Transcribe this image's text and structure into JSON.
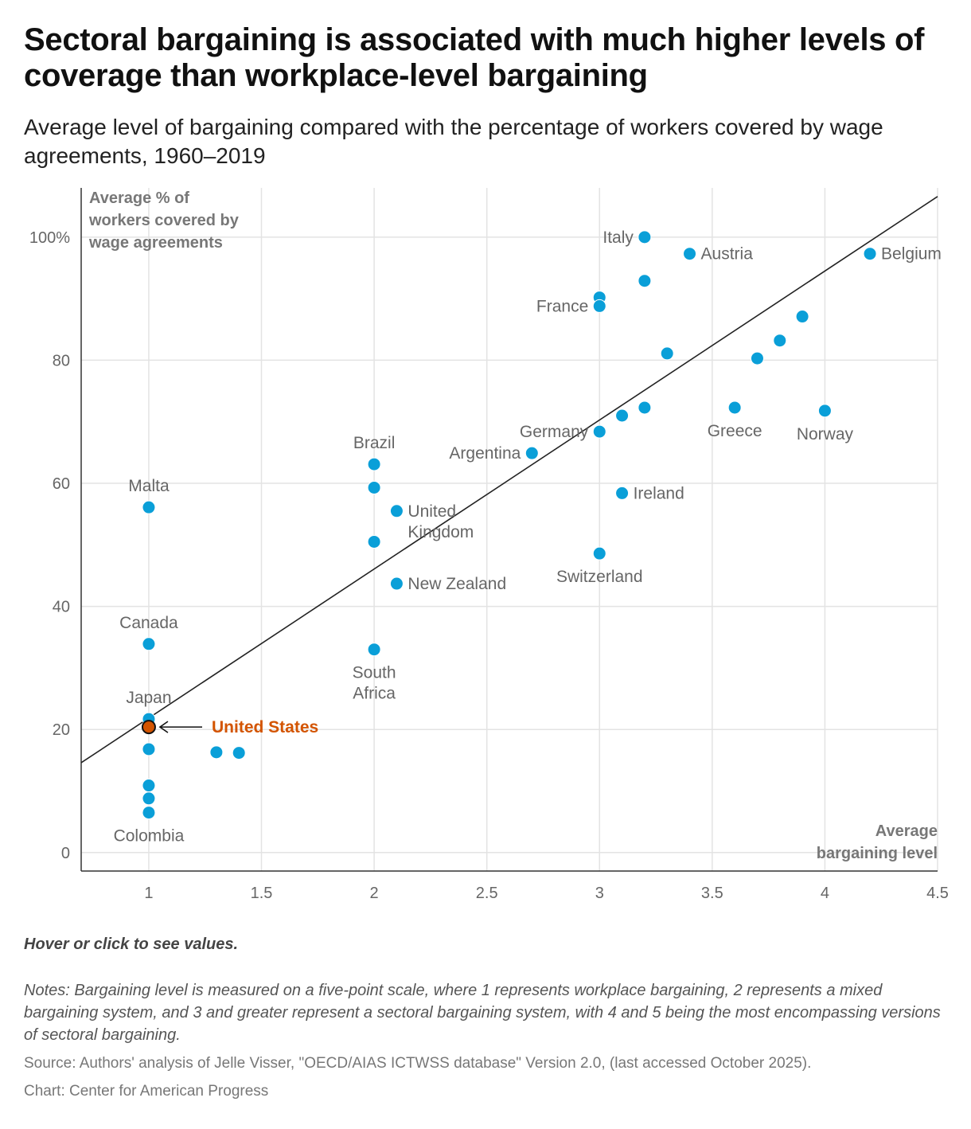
{
  "title": "Sectoral bargaining is associated with much higher levels of coverage than workplace-level bargaining",
  "subtitle": "Average level of bargaining compared with the percentage of workers covered by wage agreements, 1960–2019",
  "hover_note": "Hover or click to see values.",
  "notes": "Notes: Bargaining level is measured on a five-point scale, where 1 represents workplace bargaining, 2 represents a mixed bargaining system, and 3 and greater represent a sectoral bargaining system, with 4 and 5 being the most encompassing versions of sectoral bargaining.",
  "source": "Source: Authors' analysis of Jelle Visser, \"OECD/AIAS ICTWSS database\" Version 2.0, (last accessed October 2025).",
  "credit": "Chart: Center for American Progress",
  "chart_data": {
    "type": "scatter",
    "title": "Sectoral bargaining is associated with much higher levels of coverage than workplace-level bargaining",
    "subtitle": "Average level of bargaining compared with the percentage of workers covered by wage agreements, 1960–2019",
    "xlabel": "Average bargaining level",
    "xlabel_lines": [
      "Average",
      "bargaining level"
    ],
    "ylabel": "Average % of workers covered by wage agreements",
    "ylabel_lines": [
      "Average % of",
      "workers covered by",
      "wage agreements"
    ],
    "xlim": [
      0.7,
      4.5
    ],
    "ylim": [
      -3,
      108
    ],
    "x_ticks": [
      1,
      1.5,
      2,
      2.5,
      3,
      3.5,
      4,
      4.5
    ],
    "x_tick_labels": [
      "1",
      "1.5",
      "2",
      "2.5",
      "3",
      "3.5",
      "4",
      "4.5"
    ],
    "y_ticks": [
      0,
      20,
      40,
      60,
      80,
      100
    ],
    "y_tick_labels": [
      "0",
      "20",
      "40",
      "60",
      "80",
      "100%"
    ],
    "grid": true,
    "point_color": "#0a9fd8",
    "highlight_color": "#d35400",
    "trendline": {
      "x": [
        0.7,
        4.5
      ],
      "y": [
        14.6,
        106.6
      ],
      "color": "#222222"
    },
    "points": [
      {
        "label": "Italy",
        "x": 3.2,
        "y": 100,
        "label_pos": "left"
      },
      {
        "label": "Austria",
        "x": 3.4,
        "y": 97.3,
        "label_pos": "right"
      },
      {
        "label": "Belgium",
        "x": 4.2,
        "y": 97.3,
        "label_pos": "right"
      },
      {
        "label": "",
        "x": 3.2,
        "y": 92.9,
        "label_pos": "none"
      },
      {
        "label": "",
        "x": 3.0,
        "y": 90.2,
        "label_pos": "none"
      },
      {
        "label": "France",
        "x": 3.0,
        "y": 88.8,
        "label_pos": "left"
      },
      {
        "label": "",
        "x": 3.9,
        "y": 87.1,
        "label_pos": "none"
      },
      {
        "label": "",
        "x": 3.8,
        "y": 83.2,
        "label_pos": "none"
      },
      {
        "label": "",
        "x": 3.3,
        "y": 81.1,
        "label_pos": "none"
      },
      {
        "label": "",
        "x": 3.7,
        "y": 80.3,
        "label_pos": "none"
      },
      {
        "label": "Greece",
        "x": 3.6,
        "y": 72.3,
        "label_pos": "below"
      },
      {
        "label": "",
        "x": 3.2,
        "y": 72.3,
        "label_pos": "none"
      },
      {
        "label": "Norway",
        "x": 4.0,
        "y": 71.8,
        "label_pos": "below"
      },
      {
        "label": "",
        "x": 3.1,
        "y": 71.0,
        "label_pos": "none"
      },
      {
        "label": "Germany",
        "x": 3.0,
        "y": 68.4,
        "label_pos": "left"
      },
      {
        "label": "Argentina",
        "x": 2.7,
        "y": 64.9,
        "label_pos": "left"
      },
      {
        "label": "Brazil",
        "x": 2.0,
        "y": 63.1,
        "label_pos": "above"
      },
      {
        "label": "",
        "x": 2.0,
        "y": 59.3,
        "label_pos": "none"
      },
      {
        "label": "Ireland",
        "x": 3.1,
        "y": 58.4,
        "label_pos": "right"
      },
      {
        "label": "Malta",
        "x": 1.0,
        "y": 56.1,
        "label_pos": "above"
      },
      {
        "label": "United Kingdom",
        "lines": [
          "United",
          "Kingdom"
        ],
        "x": 2.1,
        "y": 55.5,
        "label_pos": "right"
      },
      {
        "label": "",
        "x": 2.0,
        "y": 50.5,
        "label_pos": "none"
      },
      {
        "label": "Switzerland",
        "x": 3.0,
        "y": 48.6,
        "label_pos": "below"
      },
      {
        "label": "New Zealand",
        "x": 2.1,
        "y": 43.7,
        "label_pos": "right"
      },
      {
        "label": "Canada",
        "x": 1.0,
        "y": 33.9,
        "label_pos": "above"
      },
      {
        "label": "South Africa",
        "lines": [
          "South",
          "Africa"
        ],
        "x": 2.0,
        "y": 33.0,
        "label_pos": "below"
      },
      {
        "label": "Japan",
        "x": 1.0,
        "y": 21.7,
        "label_pos": "above"
      },
      {
        "label": "",
        "x": 1.0,
        "y": 16.8,
        "label_pos": "none"
      },
      {
        "label": "",
        "x": 1.3,
        "y": 16.3,
        "label_pos": "none"
      },
      {
        "label": "",
        "x": 1.4,
        "y": 16.2,
        "label_pos": "none"
      },
      {
        "label": "",
        "x": 1.0,
        "y": 10.9,
        "label_pos": "none"
      },
      {
        "label": "",
        "x": 1.0,
        "y": 8.8,
        "label_pos": "none"
      },
      {
        "label": "Colombia",
        "x": 1.0,
        "y": 6.5,
        "label_pos": "below"
      }
    ],
    "highlight": {
      "label": "United States",
      "x": 1.0,
      "y": 20.4
    }
  }
}
